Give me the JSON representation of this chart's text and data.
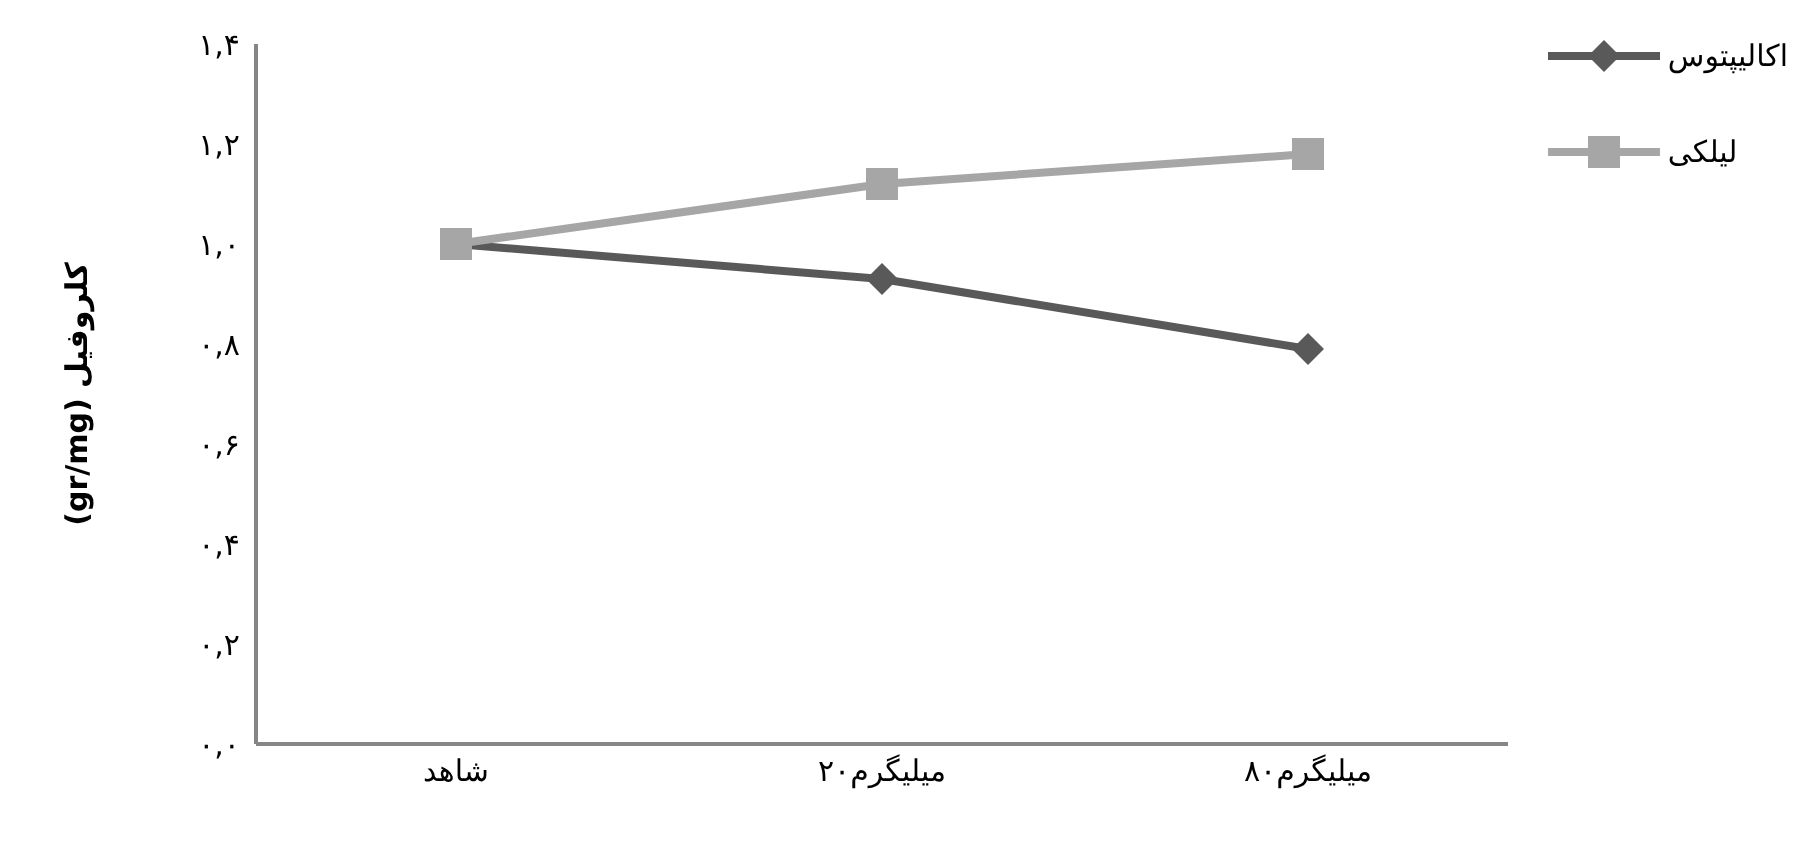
{
  "chart_data": {
    "type": "line",
    "ylabel": "کلروفیل (gr/mg)",
    "categories": [
      "شاهد",
      "۲۰میلیگرم",
      "۸۰میلیگرم"
    ],
    "series": [
      {
        "name": "اکالیپتوس",
        "color": "#595959",
        "values": [
          1.0,
          0.93,
          0.79
        ],
        "marker": "diamond"
      },
      {
        "name": "لیلکی",
        "color": "#a6a6a6",
        "values": [
          1.0,
          1.12,
          1.18
        ],
        "marker": "square"
      }
    ],
    "ylim": [
      0,
      1.4
    ],
    "yticks": [
      {
        "value": 0,
        "label": "۰,۰"
      },
      {
        "value": 0.2,
        "label": "۰,۲"
      },
      {
        "value": 0.4,
        "label": "۰,۴"
      },
      {
        "value": 0.6,
        "label": "۰,۶"
      },
      {
        "value": 0.8,
        "label": "۰,۸"
      },
      {
        "value": 1.0,
        "label": "۱,۰"
      },
      {
        "value": 1.2,
        "label": "۱,۲"
      },
      {
        "value": 1.4,
        "label": "۱,۴"
      }
    ],
    "grid": false,
    "legend": "top right",
    "line_style": "solid"
  }
}
